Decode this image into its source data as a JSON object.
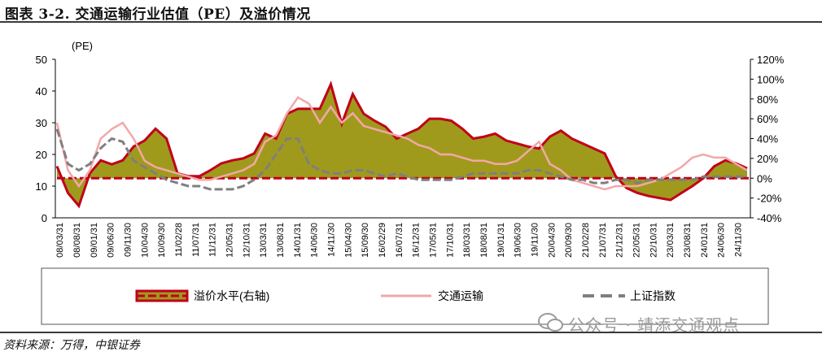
{
  "header": {
    "title": "图表 3-2. 交通运输行业估值（PE）及溢价情况"
  },
  "footer": {
    "source": "资料来源：万得，中银证券"
  },
  "watermark": {
    "text": "公众号 · 靖添交通观点",
    "icon": "wechat-icon"
  },
  "colors": {
    "premium_fill": "#a09a1c",
    "premium_line": "#c0001a",
    "transport": "#f2a8a8",
    "sse": "#7f7f7f"
  },
  "chart_data": {
    "type": "line",
    "left_axis": {
      "unit": "(PE)",
      "range": [
        0,
        50
      ],
      "ticks": [
        "0",
        "10",
        "20",
        "30",
        "40",
        "50"
      ]
    },
    "right_axis": {
      "range": [
        -40,
        120
      ],
      "ticks": [
        "-40%",
        "-20%",
        "0%",
        "20%",
        "40%",
        "60%",
        "80%",
        "100%",
        "120%"
      ]
    },
    "x_ticks": [
      "08/03/31",
      "08/08/31",
      "09/01/31",
      "09/06/30",
      "09/11/30",
      "10/04/30",
      "10/09/30",
      "11/02/28",
      "11/07/31",
      "11/12/31",
      "12/05/31",
      "12/10/31",
      "13/03/31",
      "13/08/31",
      "14/01/31",
      "14/06/30",
      "14/11/30",
      "15/04/30",
      "15/09/30",
      "16/02/29",
      "16/07/31",
      "16/12/31",
      "17/05/31",
      "17/10/31",
      "18/03/31",
      "18/08/31",
      "19/01/31",
      "19/06/30",
      "19/11/30",
      "20/04/30",
      "20/09/30",
      "21/02/28",
      "21/07/31",
      "21/12/31",
      "22/05/31",
      "22/10/31",
      "23/03/31",
      "23/08/31",
      "24/01/31",
      "24/06/30",
      "24/11/30"
    ],
    "legend": [
      "溢价水平(右轴)",
      "交通运输",
      "上证指数"
    ],
    "series": [
      {
        "name": "溢价水平(右轴)",
        "axis": "right",
        "values": [
          12,
          -15,
          -28,
          5,
          18,
          14,
          18,
          32,
          38,
          50,
          40,
          5,
          2,
          2,
          8,
          15,
          18,
          20,
          25,
          45,
          40,
          65,
          70,
          70,
          70,
          95,
          55,
          85,
          65,
          58,
          52,
          40,
          45,
          50,
          60,
          60,
          58,
          50,
          40,
          42,
          45,
          38,
          35,
          32,
          30,
          42,
          48,
          40,
          35,
          30,
          25,
          2,
          -10,
          -15,
          -18,
          -20,
          -22,
          -15,
          -8,
          0,
          12,
          18,
          15,
          10
        ]
      },
      {
        "name": "交通运输",
        "axis": "left",
        "values": [
          30,
          15,
          10,
          15,
          25,
          28,
          30,
          25,
          18,
          16,
          15,
          14,
          13,
          12,
          12,
          13,
          14,
          15,
          17,
          24,
          26,
          33,
          38,
          36,
          30,
          35,
          30,
          33,
          29,
          28,
          27,
          26,
          25,
          23,
          22,
          20,
          20,
          19,
          18,
          18,
          17,
          17,
          18,
          21,
          24,
          17,
          15,
          12,
          11,
          10,
          9,
          10,
          10,
          10,
          11,
          12,
          14,
          16,
          19,
          20,
          19,
          19,
          17,
          15
        ]
      },
      {
        "name": "上证指数",
        "axis": "left",
        "values": [
          28,
          17,
          15,
          17,
          22,
          25,
          24,
          18,
          16,
          14,
          12,
          11,
          10,
          10,
          9,
          9,
          9,
          10,
          12,
          15,
          20,
          25,
          25,
          17,
          15,
          14,
          14,
          15,
          15,
          14,
          13,
          14,
          13,
          12,
          12,
          12,
          12,
          13,
          14,
          14,
          14,
          14,
          14,
          15,
          15,
          14,
          13,
          12,
          12,
          11,
          11,
          12,
          12,
          11,
          12,
          12,
          12,
          12,
          12,
          13,
          13,
          13,
          13,
          13
        ]
      }
    ]
  }
}
